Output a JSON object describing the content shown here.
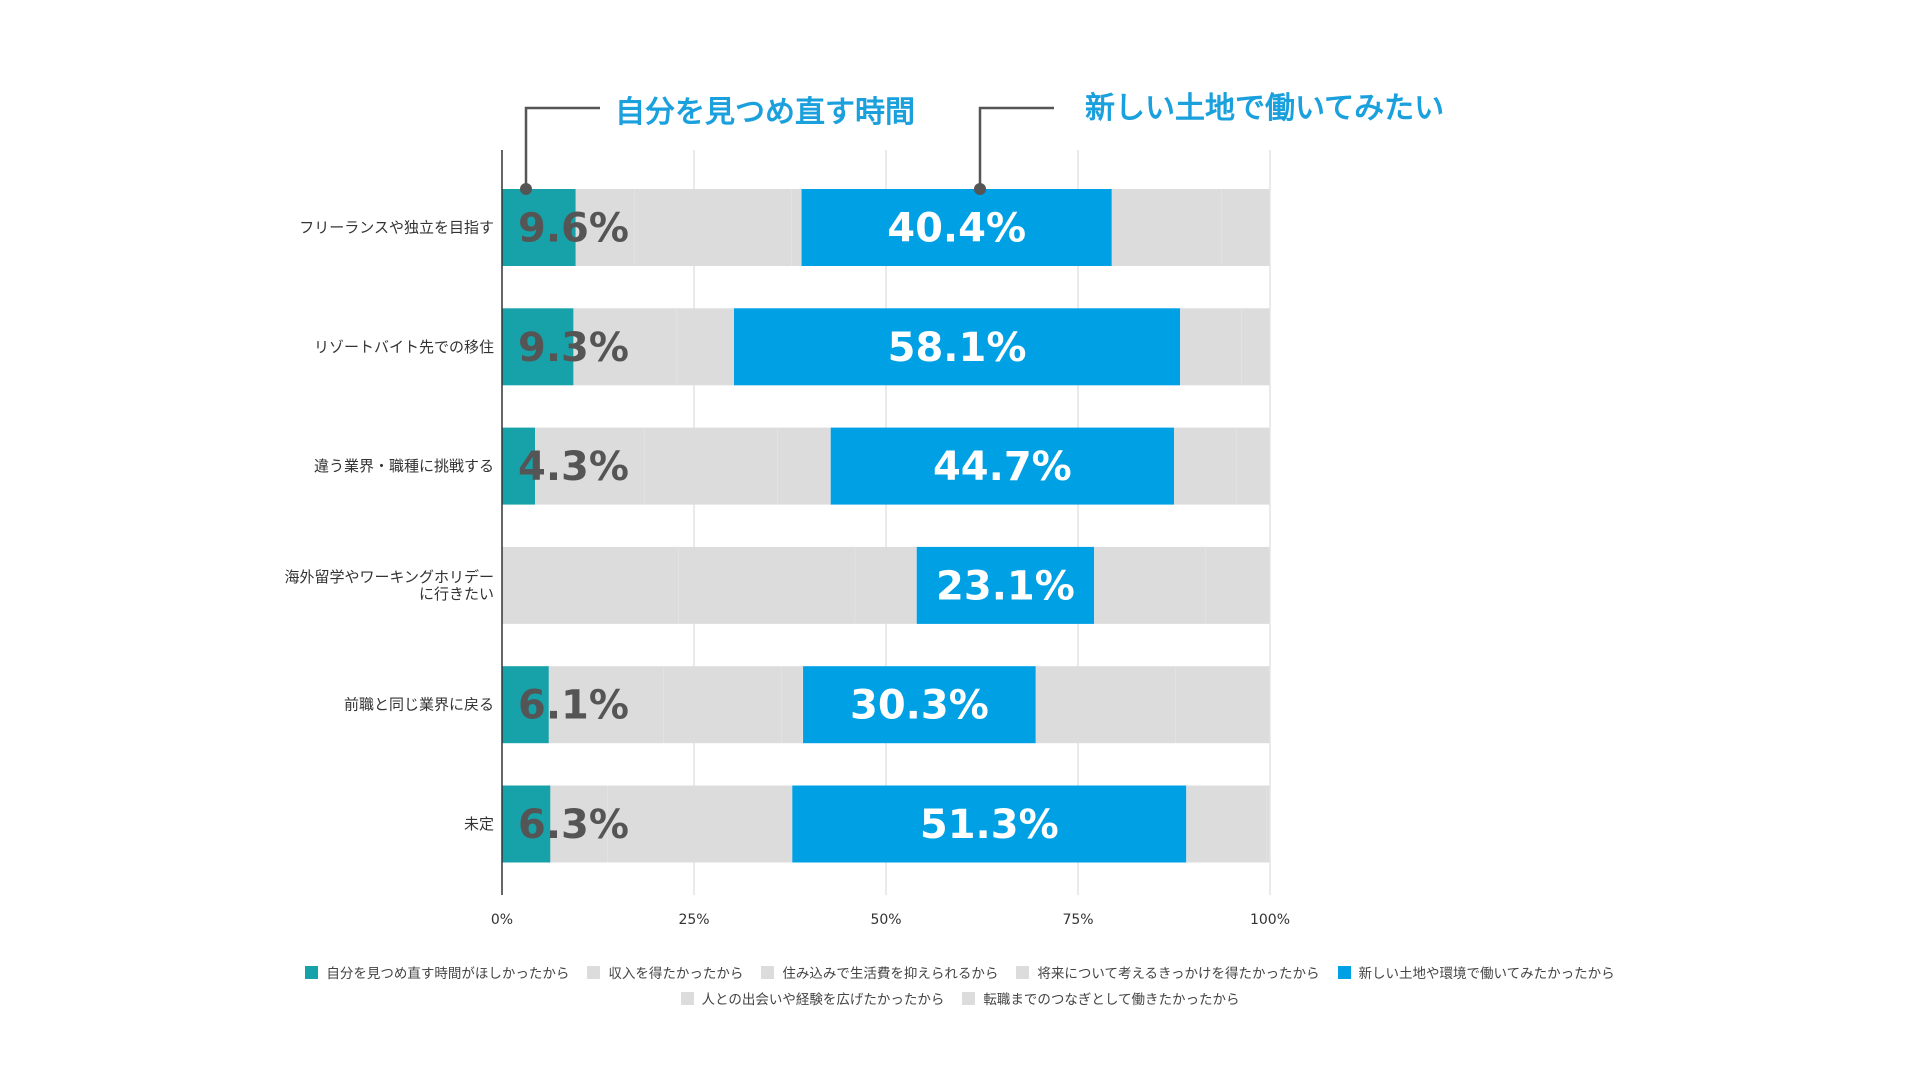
{
  "chart_data": {
    "type": "bar",
    "orientation": "horizontal",
    "stacked": true,
    "percent_stacked": true,
    "categories": [
      "フリーランスや独立を目指す",
      "リゾートバイト先での移住",
      "違う業界・職種に挑戦する",
      "海外留学やワーキングホリデーに行きたい",
      "前職と同じ業界に戻る",
      "未定"
    ],
    "category_lines": [
      [
        "フリーランスや独立を目指す"
      ],
      [
        "リゾートバイト先での移住"
      ],
      [
        "違う業界・職種に挑戦する"
      ],
      [
        "海外留学やワーキングホリデー",
        "に行きたい"
      ],
      [
        "前職と同じ業界に戻る"
      ],
      [
        "未定"
      ]
    ],
    "series": [
      {
        "name": "自分を見つめ直す時間がほしかったから",
        "color": "#17a2a9",
        "values": [
          9.6,
          9.3,
          4.3,
          0,
          6.1,
          6.3
        ]
      },
      {
        "name": "収入を得たかったから",
        "color": "#dcdcdc",
        "values": [
          7.7,
          13.5,
          14.3,
          23.0,
          15.0,
          7.5
        ]
      },
      {
        "name": "住み込みで生活費を抑えられるから",
        "color": "#dcdcdc",
        "values": [
          20.4,
          7.4,
          17.3,
          23.0,
          15.3,
          24.0
        ]
      },
      {
        "name": "将来について考えるきっかけを得たかったから",
        "color": "#dcdcdc",
        "values": [
          1.3,
          0,
          6.9,
          8.0,
          2.8,
          0
        ]
      },
      {
        "name": "新しい土地や環境で働いてみたかったから",
        "color": "#00a0e4",
        "values": [
          40.4,
          58.1,
          44.7,
          23.1,
          30.3,
          51.3
        ]
      },
      {
        "name": "人との出会いや経験を広げたかったから",
        "color": "#dcdcdc",
        "values": [
          14.3,
          8.0,
          8.2,
          14.5,
          18.2,
          10.5
        ]
      },
      {
        "name": "転職までのつなぎとして働きたかったから",
        "color": "#dcdcdc",
        "values": [
          6.3,
          3.7,
          4.3,
          8.4,
          12.3,
          0.4
        ]
      }
    ],
    "highlight_labels": {
      "series0": [
        "9.6%",
        "9.3%",
        "4.3%",
        "",
        "6.1%",
        "6.3%"
      ],
      "series4": [
        "40.4%",
        "58.1%",
        "44.7%",
        "23.1%",
        "30.3%",
        "51.3%"
      ]
    },
    "x_ticks": [
      "0%",
      "25%",
      "50%",
      "75%",
      "100%"
    ],
    "xlim": [
      0,
      100
    ],
    "grid": true,
    "legend_position": "bottom"
  },
  "callouts": {
    "left": "自分を見つめ直す時間",
    "right": "新しい土地で働いてみたい"
  },
  "colors": {
    "teal": "#17a2a9",
    "blue": "#00a0e4",
    "gray": "#dcdcdc",
    "teal_label_text": "#555555",
    "callout_text": "#1aa0dd"
  }
}
